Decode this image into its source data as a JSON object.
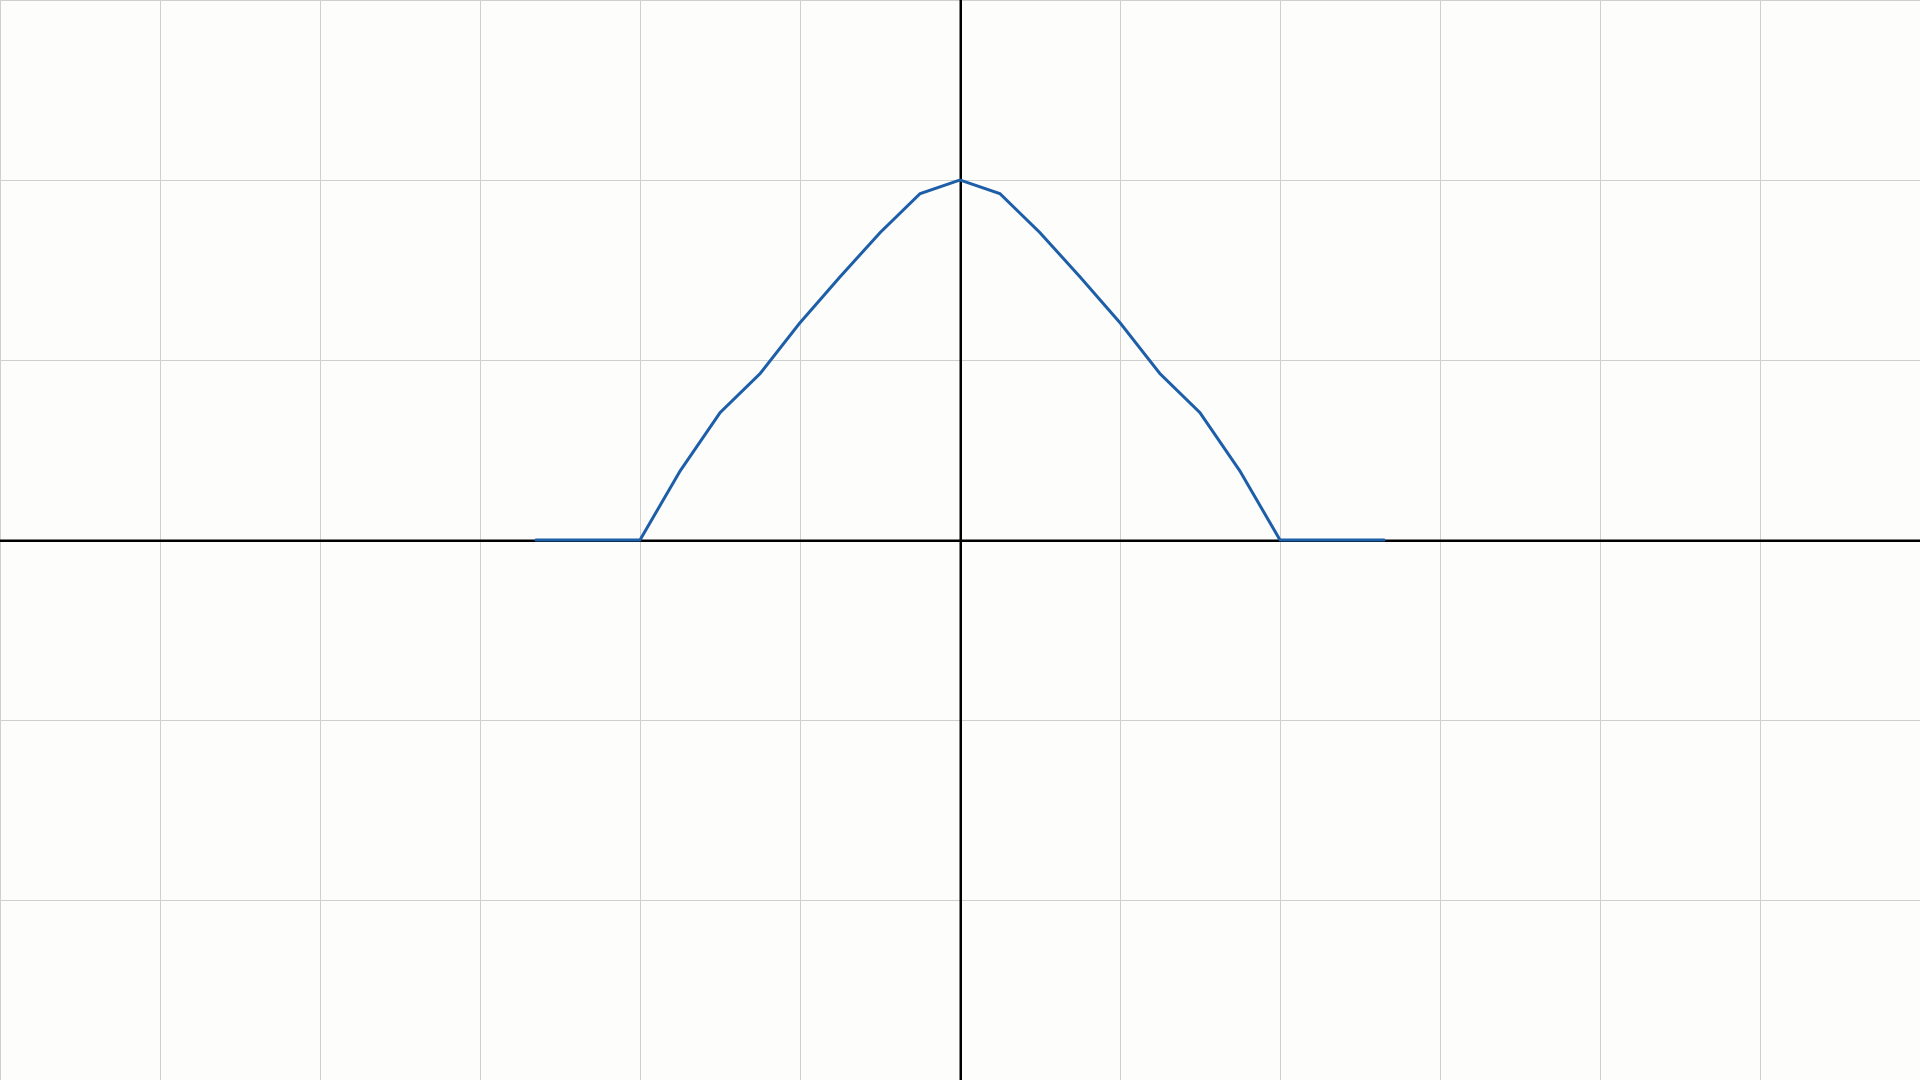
{
  "chart_data": {
    "type": "line",
    "title": "",
    "xlabel": "",
    "ylabel": "",
    "xlim": [
      -6,
      6
    ],
    "ylim": [
      -3,
      3
    ],
    "grid": true,
    "legend": "none",
    "background_color": "#fdfdfb",
    "grid_color": "#d0d0d0",
    "axis_color": "#000000",
    "series": [
      {
        "color": "#1c5ea8",
        "x": [
          -2.65,
          -2,
          -1.75,
          -1.5,
          -1.25,
          -1,
          -0.75,
          -0.5,
          -0.25,
          0,
          0.25,
          0.5,
          0.75,
          1,
          1.25,
          1.5,
          1.75,
          2,
          2.65
        ],
        "y": [
          0,
          0,
          0.3827,
          0.7071,
          0.9239,
          1.2071,
          1.4619,
          1.7071,
          1.9239,
          2,
          1.9239,
          1.7071,
          1.4619,
          1.2071,
          0.9239,
          0.7071,
          0.3827,
          0,
          0
        ]
      }
    ]
  }
}
